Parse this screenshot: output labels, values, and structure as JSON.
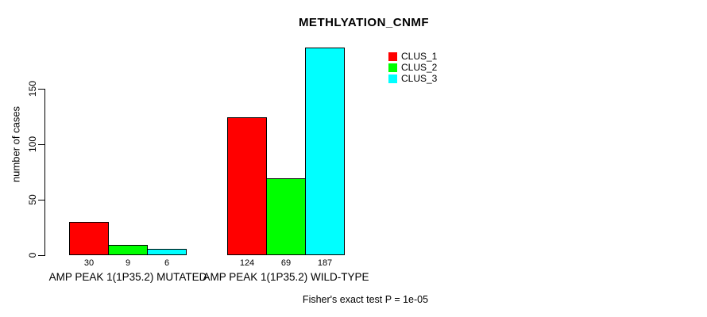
{
  "chart_data": {
    "type": "bar",
    "title": "METHLYATION_CNMF",
    "ylabel": "number of cases",
    "xlabel": "",
    "annotation": "Fisher's exact test P = 1e-05",
    "categories": [
      "AMP PEAK 1(1P35.2) MUTATED",
      "AMP PEAK 1(1P35.2) WILD-TYPE"
    ],
    "series": [
      {
        "name": "CLUS_1",
        "color": "#ff0000",
        "values": [
          30,
          124
        ]
      },
      {
        "name": "CLUS_2",
        "color": "#00ff00",
        "values": [
          9,
          69
        ]
      },
      {
        "name": "CLUS_3",
        "color": "#00ffff",
        "values": [
          6,
          187
        ]
      }
    ],
    "bar_value_labels": [
      [
        "30",
        "9",
        "6"
      ],
      [
        "124",
        "69",
        "187"
      ]
    ],
    "yticks": [
      "0",
      "50",
      "100",
      "150"
    ],
    "ylim": [
      0,
      150
    ],
    "grid": false,
    "legend_position": "top-right",
    "axis_color": "#000000",
    "text_color": "#000000",
    "background_color": "#ffffff"
  }
}
